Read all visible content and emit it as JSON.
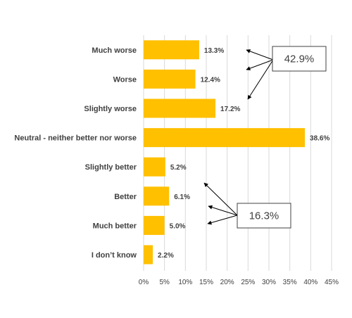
{
  "chart_data": {
    "type": "bar",
    "orientation": "horizontal",
    "categories": [
      "Much worse",
      "Worse",
      "Slightly worse",
      "Neutral - neither better nor worse",
      "Slightly better",
      "Better",
      "Much better",
      "I don’t know"
    ],
    "values": [
      13.3,
      12.4,
      17.2,
      38.6,
      5.2,
      6.1,
      5.0,
      2.2
    ],
    "value_labels": [
      "13.3%",
      "12.4%",
      "17.2%",
      "38.6%",
      "5.2%",
      "6.1%",
      "5.0%",
      "2.2%"
    ],
    "xlim": [
      0,
      45
    ],
    "x_ticks": [
      0,
      5,
      10,
      15,
      20,
      25,
      30,
      35,
      40,
      45
    ],
    "x_tick_labels": [
      "0%",
      "5%",
      "10%",
      "15%",
      "20%",
      "25%",
      "30%",
      "35%",
      "40%",
      "45%"
    ],
    "grid": "vertical",
    "bar_color": "#FFC000",
    "callouts": [
      {
        "label": "42.9%",
        "targets": [
          "Much worse",
          "Worse",
          "Slightly worse"
        ]
      },
      {
        "label": "16.3%",
        "targets": [
          "Slightly better",
          "Better",
          "Much better"
        ]
      }
    ]
  }
}
